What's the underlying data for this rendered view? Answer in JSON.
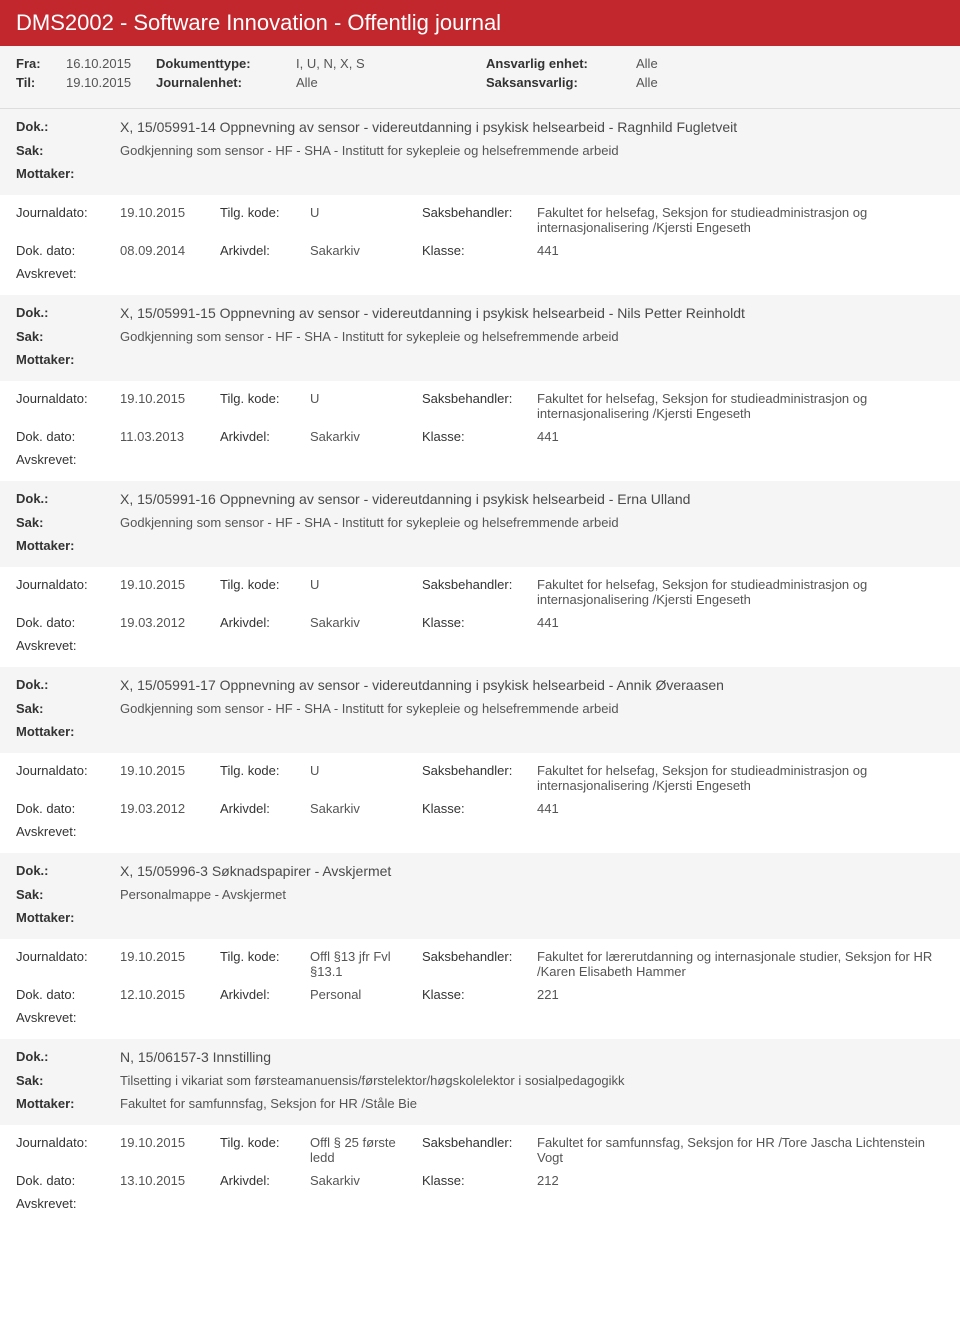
{
  "header": {
    "title": "DMS2002 - Software Innovation - Offentlig journal"
  },
  "meta": {
    "fra_label": "Fra:",
    "fra": "16.10.2015",
    "til_label": "Til:",
    "til": "19.10.2015",
    "doktype_label": "Dokumenttype:",
    "doktype": "I, U, N, X, S",
    "journalenhet_label": "Journalenhet:",
    "journalenhet": "Alle",
    "ansvarlig_label": "Ansvarlig enhet:",
    "ansvarlig": "Alle",
    "saksansvarlig_label": "Saksansvarlig:",
    "saksansvarlig": "Alle"
  },
  "labels": {
    "dok": "Dok.:",
    "sak": "Sak:",
    "mottaker": "Mottaker:",
    "journaldato": "Journaldato:",
    "tilgkode": "Tilg. kode:",
    "saksbehandler": "Saksbehandler:",
    "dokdato": "Dok. dato:",
    "arkivdel": "Arkivdel:",
    "klasse": "Klasse:",
    "avskrevet": "Avskrevet:"
  },
  "records": [
    {
      "dok": "X, 15/05991-14 Oppnevning av sensor - videreutdanning i psykisk helsearbeid - Ragnhild Fugletveit",
      "sak": "Godkjenning som sensor - HF - SHA - Institutt for sykepleie og helsefremmende arbeid",
      "mottaker": "",
      "journaldato": "19.10.2015",
      "tilgkode": "U",
      "saksbehandler": "Fakultet for helsefag, Seksjon for studieadministrasjon og internasjonalisering /Kjersti Engeseth",
      "dokdato": "08.09.2014",
      "arkivdel": "Sakarkiv",
      "klasse": "441"
    },
    {
      "dok": "X, 15/05991-15 Oppnevning av sensor - videreutdanning i psykisk helsearbeid - Nils Petter Reinholdt",
      "sak": "Godkjenning som sensor - HF - SHA - Institutt for sykepleie og helsefremmende arbeid",
      "mottaker": "",
      "journaldato": "19.10.2015",
      "tilgkode": "U",
      "saksbehandler": "Fakultet for helsefag, Seksjon for studieadministrasjon og internasjonalisering /Kjersti Engeseth",
      "dokdato": "11.03.2013",
      "arkivdel": "Sakarkiv",
      "klasse": "441"
    },
    {
      "dok": "X, 15/05991-16 Oppnevning av sensor - videreutdanning i psykisk helsearbeid - Erna Ulland",
      "sak": "Godkjenning som sensor - HF - SHA - Institutt for sykepleie og helsefremmende arbeid",
      "mottaker": "",
      "journaldato": "19.10.2015",
      "tilgkode": "U",
      "saksbehandler": "Fakultet for helsefag, Seksjon for studieadministrasjon og internasjonalisering /Kjersti Engeseth",
      "dokdato": "19.03.2012",
      "arkivdel": "Sakarkiv",
      "klasse": "441"
    },
    {
      "dok": "X, 15/05991-17 Oppnevning av sensor - videreutdanning i psykisk helsearbeid - Annik Øveraasen",
      "sak": "Godkjenning som sensor - HF - SHA - Institutt for sykepleie og helsefremmende arbeid",
      "mottaker": "",
      "journaldato": "19.10.2015",
      "tilgkode": "U",
      "saksbehandler": "Fakultet for helsefag, Seksjon for studieadministrasjon og internasjonalisering /Kjersti Engeseth",
      "dokdato": "19.03.2012",
      "arkivdel": "Sakarkiv",
      "klasse": "441"
    },
    {
      "dok": "X, 15/05996-3 Søknadspapirer - Avskjermet",
      "sak": "Personalmappe - Avskjermet",
      "mottaker": "",
      "journaldato": "19.10.2015",
      "tilgkode": "Offl §13 jfr Fvl §13.1",
      "saksbehandler": "Fakultet for lærerutdanning og internasjonale studier, Seksjon for HR /Karen Elisabeth Hammer",
      "dokdato": "12.10.2015",
      "arkivdel": "Personal",
      "klasse": "221"
    },
    {
      "dok": "N, 15/06157-3 Innstilling",
      "sak": "Tilsetting i vikariat som førsteamanuensis/førstelektor/høgskolelektor i sosialpedagogikk",
      "mottaker": "Fakultet for samfunnsfag, Seksjon for HR /Ståle Bie",
      "journaldato": "19.10.2015",
      "tilgkode": "Offl § 25 første ledd",
      "saksbehandler": "Fakultet for samfunnsfag, Seksjon for HR /Tore Jascha Lichtenstein Vogt",
      "dokdato": "13.10.2015",
      "arkivdel": "Sakarkiv",
      "klasse": "212"
    }
  ]
}
